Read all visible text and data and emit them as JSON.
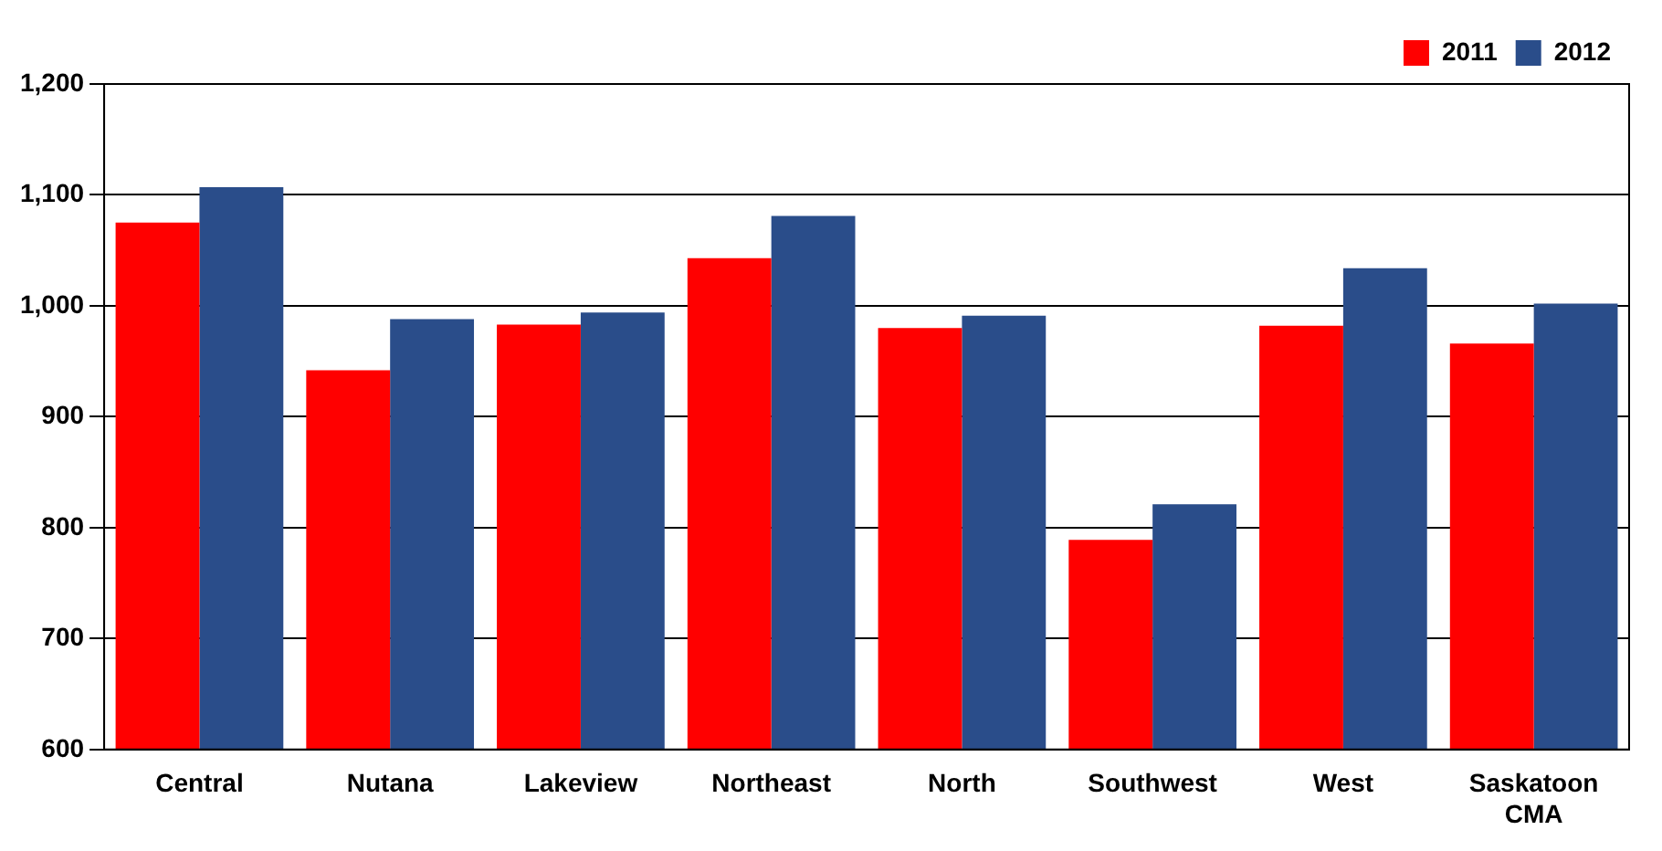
{
  "chart_data": {
    "type": "bar",
    "categories": [
      "Central",
      "Nutana",
      "Lakeview",
      "Northeast",
      "North",
      "Southwest",
      "West",
      "Saskatoon CMA"
    ],
    "series": [
      {
        "name": "2011",
        "color": "#ff0000",
        "values": [
          1075,
          942,
          983,
          1043,
          980,
          789,
          982,
          966
        ]
      },
      {
        "name": "2012",
        "color": "#2a4d8a",
        "values": [
          1107,
          988,
          994,
          1081,
          991,
          821,
          1034,
          1002
        ]
      }
    ],
    "ylim": [
      600,
      1200
    ],
    "yticks": [
      {
        "value": 600,
        "label": "600"
      },
      {
        "value": 700,
        "label": "700"
      },
      {
        "value": 800,
        "label": "800"
      },
      {
        "value": 900,
        "label": "900"
      },
      {
        "value": 1000,
        "label": "1,000"
      },
      {
        "value": 1100,
        "label": "1,100"
      },
      {
        "value": 1200,
        "label": "1,200"
      }
    ],
    "grid": "y",
    "legend": "top right"
  }
}
